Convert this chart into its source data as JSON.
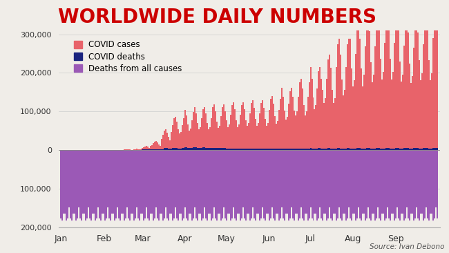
{
  "title": "WORLDWIDE DAILY NUMBERS",
  "title_color": "#cc0000",
  "title_fontsize": 20,
  "title_fontweight": "bold",
  "background_color": "#f0ede8",
  "source_text": "Source: Ivan Debono",
  "legend_items": [
    {
      "label": "COVID cases",
      "color": "#e8636a"
    },
    {
      "label": "COVID deaths",
      "color": "#1a237e"
    },
    {
      "label": "Deaths from all causes",
      "color": "#9b59b6"
    }
  ],
  "covid_cases_color": "#e8636a",
  "covid_deaths_color": "#1a237e",
  "all_deaths_color": "#9b59b6",
  "ylim": [
    -200000,
    310000
  ],
  "yticks": [
    -200000,
    -100000,
    0,
    100000,
    200000,
    300000
  ],
  "ytick_labels": [
    "200,000",
    "100,000",
    "0",
    "100,000",
    "200,000",
    "300,000"
  ],
  "num_days": 274,
  "month_labels": [
    "Jan",
    "Feb",
    "Mar",
    "Apr",
    "May",
    "Jun",
    "Jul",
    "Aug",
    "Sep"
  ],
  "month_positions": [
    0,
    31,
    59,
    90,
    120,
    151,
    181,
    212,
    243
  ]
}
